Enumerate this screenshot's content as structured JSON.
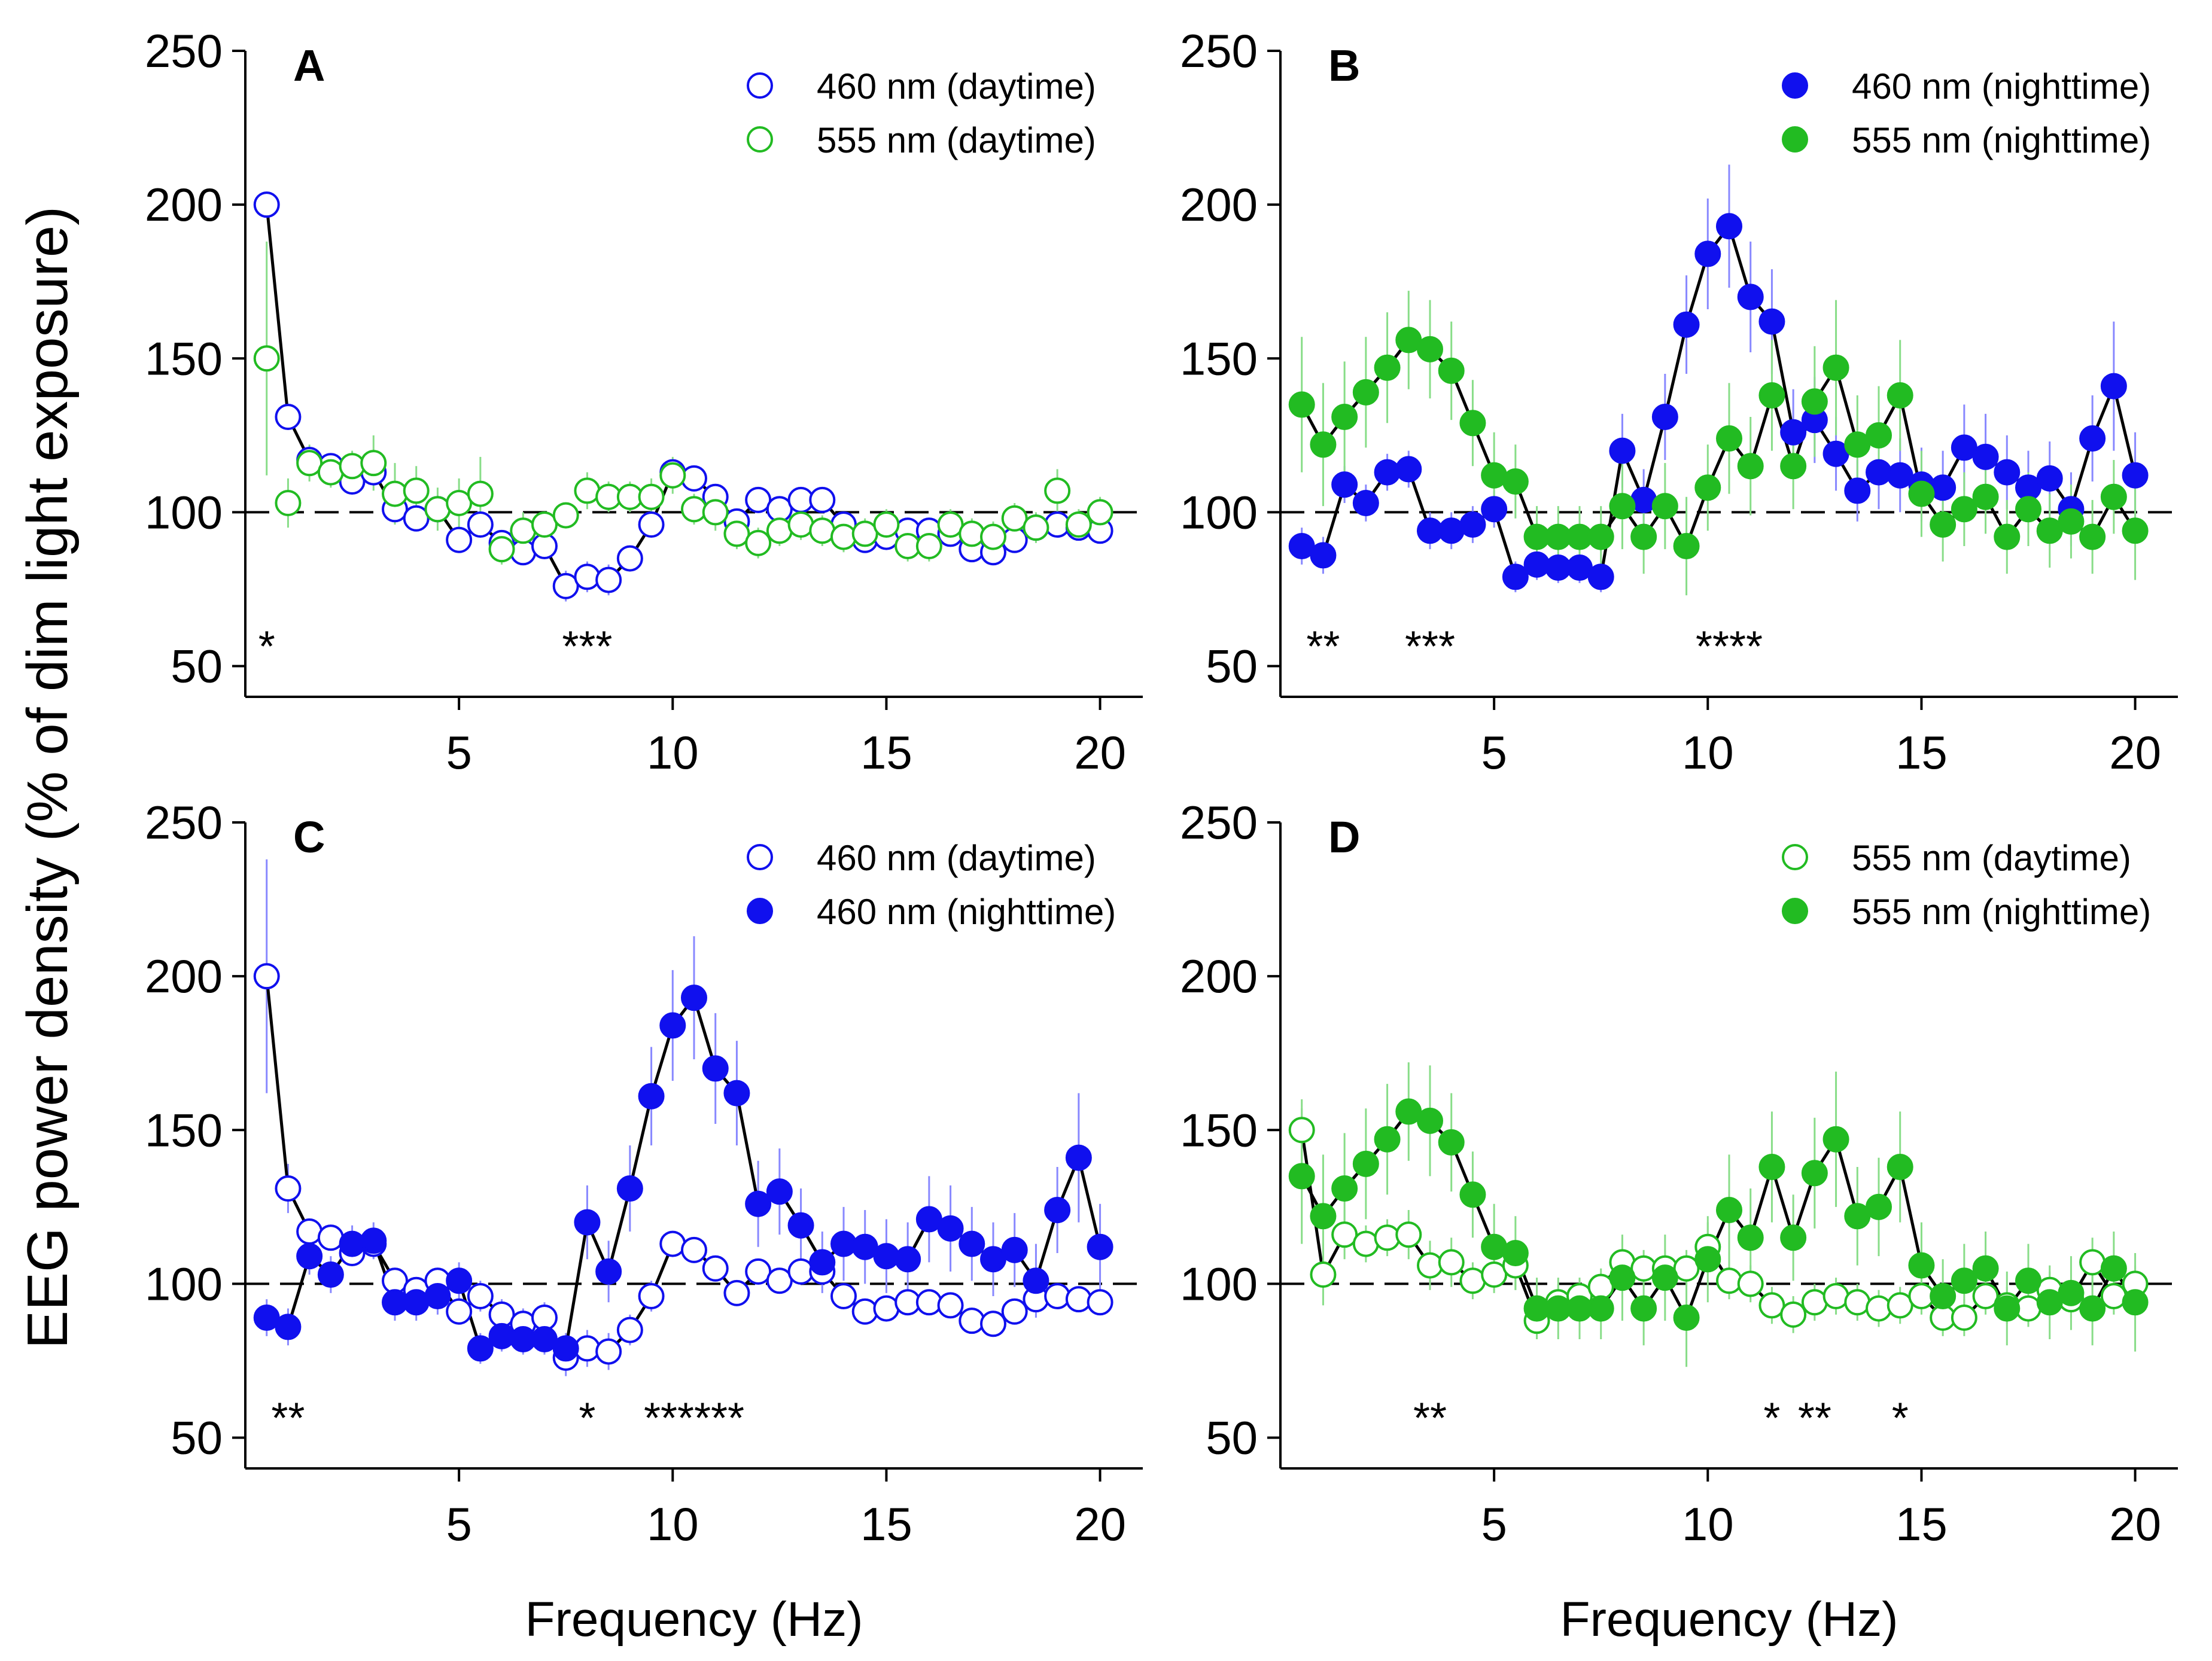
{
  "figure": {
    "ylabel": "EEG power density (% of dim light exposure)",
    "xlabel": "Frequency (Hz)"
  },
  "colors": {
    "blue": "#1010ee",
    "green": "#22bb22",
    "line": "#000000",
    "error_blue": "#8888ff",
    "error_green": "#88dd88"
  },
  "chart_data": [
    {
      "type": "line",
      "panel": "A",
      "title": "A",
      "xlabel": "",
      "ylabel": "EEG power density (% of dim light exposure)",
      "xlim": [
        0,
        21
      ],
      "ylim": [
        40,
        250
      ],
      "xticks": [
        5,
        10,
        15,
        20
      ],
      "yticks": [
        50,
        100,
        150,
        200,
        250
      ],
      "reference_line": 100,
      "legend_position": "top-right",
      "x": [
        0.5,
        1,
        1.5,
        2,
        2.5,
        3,
        3.5,
        4,
        4.5,
        5,
        5.5,
        6,
        6.5,
        7,
        7.5,
        8,
        8.5,
        9,
        9.5,
        10,
        10.5,
        11,
        11.5,
        12,
        12.5,
        13,
        13.5,
        14,
        14.5,
        15,
        15.5,
        16,
        16.5,
        17,
        17.5,
        18,
        18.5,
        19,
        19.5,
        20
      ],
      "series": [
        {
          "name": "460 nm (daytime)",
          "color": "blue",
          "filled": false,
          "connected": true,
          "values": [
            200,
            131,
            117,
            115,
            110,
            113,
            101,
            98,
            101,
            91,
            96,
            90,
            87,
            89,
            76,
            79,
            78,
            85,
            96,
            113,
            111,
            105,
            97,
            104,
            101,
            104,
            104,
            96,
            91,
            92,
            94,
            94,
            93,
            88,
            87,
            91,
            95,
            96,
            95,
            94
          ],
          "errors": [
            4,
            4,
            3,
            2,
            2,
            2,
            3,
            3,
            3,
            4,
            4,
            4,
            4,
            4,
            5,
            5,
            5,
            4,
            4,
            3,
            3,
            3,
            3,
            3,
            3,
            3,
            3,
            3,
            3,
            3,
            3,
            3,
            3,
            3,
            3,
            3,
            3,
            3,
            3,
            3
          ]
        },
        {
          "name": "555 nm (daytime)",
          "color": "green",
          "filled": false,
          "connected": false,
          "values": [
            150,
            103,
            116,
            113,
            115,
            116,
            106,
            107,
            101,
            103,
            106,
            88,
            94,
            96,
            99,
            107,
            105,
            105,
            105,
            112,
            101,
            100,
            93,
            90,
            94,
            96,
            94,
            92,
            93,
            96,
            89,
            89,
            96,
            93,
            92,
            98,
            95,
            107,
            96,
            100
          ],
          "errors": [
            38,
            8,
            6,
            5,
            5,
            9,
            10,
            8,
            7,
            8,
            12,
            5,
            6,
            4,
            4,
            6,
            5,
            5,
            6,
            6,
            5,
            6,
            5,
            5,
            5,
            5,
            5,
            5,
            5,
            5,
            5,
            5,
            5,
            5,
            5,
            5,
            5,
            7,
            5,
            5
          ]
        }
      ],
      "significance": [
        {
          "x": 0.5,
          "label": "*"
        },
        {
          "x": 8,
          "label": "***"
        }
      ]
    },
    {
      "type": "line",
      "panel": "B",
      "title": "B",
      "xlabel": "",
      "ylabel": "",
      "xlim": [
        0,
        21
      ],
      "ylim": [
        40,
        250
      ],
      "xticks": [
        5,
        10,
        15,
        20
      ],
      "yticks": [
        50,
        100,
        150,
        200,
        250
      ],
      "reference_line": 100,
      "legend_position": "top-right",
      "x": [
        0.5,
        1,
        1.5,
        2,
        2.5,
        3,
        3.5,
        4,
        4.5,
        5,
        5.5,
        6,
        6.5,
        7,
        7.5,
        8,
        8.5,
        9,
        9.5,
        10,
        10.5,
        11,
        11.5,
        12,
        12.5,
        13,
        13.5,
        14,
        14.5,
        15,
        15.5,
        16,
        16.5,
        17,
        17.5,
        18,
        18.5,
        19,
        19.5,
        20
      ],
      "series": [
        {
          "name": "460 nm (nighttime)",
          "color": "blue",
          "filled": true,
          "connected": true,
          "values": [
            89,
            86,
            109,
            103,
            113,
            114,
            94,
            94,
            96,
            101,
            79,
            83,
            82,
            82,
            79,
            120,
            104,
            131,
            161,
            184,
            193,
            170,
            162,
            126,
            130,
            119,
            107,
            113,
            112,
            109,
            108,
            121,
            118,
            113,
            108,
            111,
            101,
            124,
            141,
            112
          ],
          "errors": [
            6,
            6,
            6,
            6,
            6,
            6,
            6,
            6,
            6,
            6,
            5,
            5,
            5,
            5,
            5,
            12,
            10,
            14,
            16,
            18,
            20,
            18,
            17,
            14,
            14,
            12,
            10,
            12,
            12,
            12,
            12,
            14,
            14,
            12,
            12,
            12,
            12,
            14,
            21,
            14
          ]
        },
        {
          "name": "555 nm (nighttime)",
          "color": "green",
          "filled": true,
          "connected": true,
          "values": [
            135,
            122,
            131,
            139,
            147,
            156,
            153,
            146,
            129,
            112,
            110,
            92,
            92,
            92,
            92,
            102,
            92,
            102,
            89,
            108,
            124,
            115,
            138,
            115,
            136,
            147,
            122,
            125,
            138,
            106,
            96,
            101,
            105,
            92,
            101,
            94,
            97,
            92,
            105,
            94
          ],
          "errors": [
            22,
            20,
            18,
            18,
            18,
            16,
            16,
            16,
            14,
            14,
            12,
            10,
            10,
            10,
            10,
            14,
            12,
            14,
            16,
            14,
            18,
            16,
            18,
            14,
            18,
            22,
            16,
            16,
            18,
            14,
            12,
            12,
            12,
            12,
            12,
            12,
            12,
            12,
            12,
            16
          ]
        }
      ],
      "significance": [
        {
          "x": 1,
          "label": "**"
        },
        {
          "x": 3.5,
          "label": "***"
        },
        {
          "x": 10.5,
          "label": "****"
        }
      ]
    },
    {
      "type": "line",
      "panel": "C",
      "title": "C",
      "xlabel": "Frequency (Hz)",
      "ylabel": "",
      "xlim": [
        0,
        21
      ],
      "ylim": [
        40,
        250
      ],
      "xticks": [
        5,
        10,
        15,
        20
      ],
      "yticks": [
        50,
        100,
        150,
        200,
        250
      ],
      "reference_line": 100,
      "legend_position": "top-right",
      "x": [
        0.5,
        1,
        1.5,
        2,
        2.5,
        3,
        3.5,
        4,
        4.5,
        5,
        5.5,
        6,
        6.5,
        7,
        7.5,
        8,
        8.5,
        9,
        9.5,
        10,
        10.5,
        11,
        11.5,
        12,
        12.5,
        13,
        13.5,
        14,
        14.5,
        15,
        15.5,
        16,
        16.5,
        17,
        17.5,
        18,
        18.5,
        19,
        19.5,
        20
      ],
      "series": [
        {
          "name": "460 nm (daytime)",
          "color": "blue",
          "filled": false,
          "connected": true,
          "values": [
            200,
            131,
            117,
            115,
            110,
            113,
            101,
            98,
            101,
            91,
            96,
            90,
            87,
            89,
            76,
            79,
            78,
            85,
            96,
            113,
            111,
            105,
            97,
            104,
            101,
            104,
            104,
            96,
            91,
            92,
            94,
            94,
            93,
            88,
            87,
            91,
            95,
            96,
            95,
            94
          ],
          "errors": [
            38,
            8,
            4,
            3,
            3,
            3,
            4,
            4,
            4,
            4,
            5,
            5,
            5,
            5,
            6,
            6,
            6,
            5,
            5,
            4,
            4,
            4,
            4,
            4,
            4,
            4,
            4,
            4,
            4,
            4,
            4,
            4,
            4,
            4,
            4,
            4,
            4,
            4,
            4,
            4
          ]
        },
        {
          "name": "460 nm (nighttime)",
          "color": "blue",
          "filled": true,
          "connected": true,
          "values": [
            89,
            86,
            109,
            103,
            113,
            114,
            94,
            94,
            96,
            101,
            79,
            83,
            82,
            82,
            79,
            120,
            104,
            131,
            161,
            184,
            193,
            170,
            162,
            126,
            130,
            119,
            107,
            113,
            112,
            109,
            108,
            121,
            118,
            113,
            108,
            111,
            101,
            124,
            141,
            112
          ],
          "errors": [
            6,
            6,
            6,
            6,
            6,
            6,
            6,
            6,
            6,
            6,
            5,
            5,
            5,
            5,
            5,
            12,
            10,
            14,
            16,
            18,
            20,
            18,
            17,
            14,
            14,
            12,
            10,
            12,
            12,
            12,
            12,
            14,
            14,
            12,
            12,
            12,
            12,
            14,
            21,
            14
          ]
        }
      ],
      "significance": [
        {
          "x": 1,
          "label": "**"
        },
        {
          "x": 8,
          "label": "*"
        },
        {
          "x": 10.5,
          "label": "******"
        }
      ]
    },
    {
      "type": "line",
      "panel": "D",
      "title": "D",
      "xlabel": "Frequency (Hz)",
      "ylabel": "",
      "xlim": [
        0,
        21
      ],
      "ylim": [
        40,
        250
      ],
      "xticks": [
        5,
        10,
        15,
        20
      ],
      "yticks": [
        50,
        100,
        150,
        200,
        250
      ],
      "reference_line": 100,
      "legend_position": "top-right",
      "x": [
        0.5,
        1,
        1.5,
        2,
        2.5,
        3,
        3.5,
        4,
        4.5,
        5,
        5.5,
        6,
        6.5,
        7,
        7.5,
        8,
        8.5,
        9,
        9.5,
        10,
        10.5,
        11,
        11.5,
        12,
        12.5,
        13,
        13.5,
        14,
        14.5,
        15,
        15.5,
        16,
        16.5,
        17,
        17.5,
        18,
        18.5,
        19,
        19.5,
        20
      ],
      "series": [
        {
          "name": "555 nm (daytime)",
          "color": "green",
          "filled": false,
          "connected": true,
          "values": [
            150,
            103,
            116,
            113,
            115,
            116,
            106,
            107,
            101,
            103,
            106,
            88,
            94,
            96,
            99,
            107,
            105,
            105,
            105,
            112,
            101,
            100,
            93,
            90,
            94,
            96,
            94,
            92,
            93,
            96,
            89,
            89,
            96,
            93,
            92,
            98,
            95,
            107,
            96,
            100
          ],
          "errors": [
            10,
            10,
            8,
            6,
            6,
            8,
            8,
            8,
            6,
            6,
            8,
            6,
            6,
            6,
            6,
            8,
            6,
            6,
            6,
            8,
            6,
            6,
            6,
            6,
            6,
            6,
            6,
            6,
            6,
            6,
            6,
            6,
            6,
            6,
            6,
            6,
            6,
            8,
            6,
            6
          ]
        },
        {
          "name": "555 nm (nighttime)",
          "color": "green",
          "filled": true,
          "connected": true,
          "values": [
            135,
            122,
            131,
            139,
            147,
            156,
            153,
            146,
            129,
            112,
            110,
            92,
            92,
            92,
            92,
            102,
            92,
            102,
            89,
            108,
            124,
            115,
            138,
            115,
            136,
            147,
            122,
            125,
            138,
            106,
            96,
            101,
            105,
            92,
            101,
            94,
            97,
            92,
            105,
            94
          ],
          "errors": [
            22,
            20,
            18,
            18,
            18,
            16,
            18,
            16,
            14,
            14,
            12,
            10,
            10,
            10,
            10,
            14,
            12,
            14,
            16,
            14,
            18,
            16,
            18,
            14,
            18,
            22,
            16,
            16,
            18,
            14,
            12,
            12,
            12,
            12,
            12,
            12,
            12,
            12,
            12,
            16
          ]
        }
      ],
      "significance": [
        {
          "x": 3.5,
          "label": "**"
        },
        {
          "x": 11.5,
          "label": "*"
        },
        {
          "x": 12.5,
          "label": "**"
        },
        {
          "x": 14.5,
          "label": "*"
        }
      ]
    }
  ]
}
